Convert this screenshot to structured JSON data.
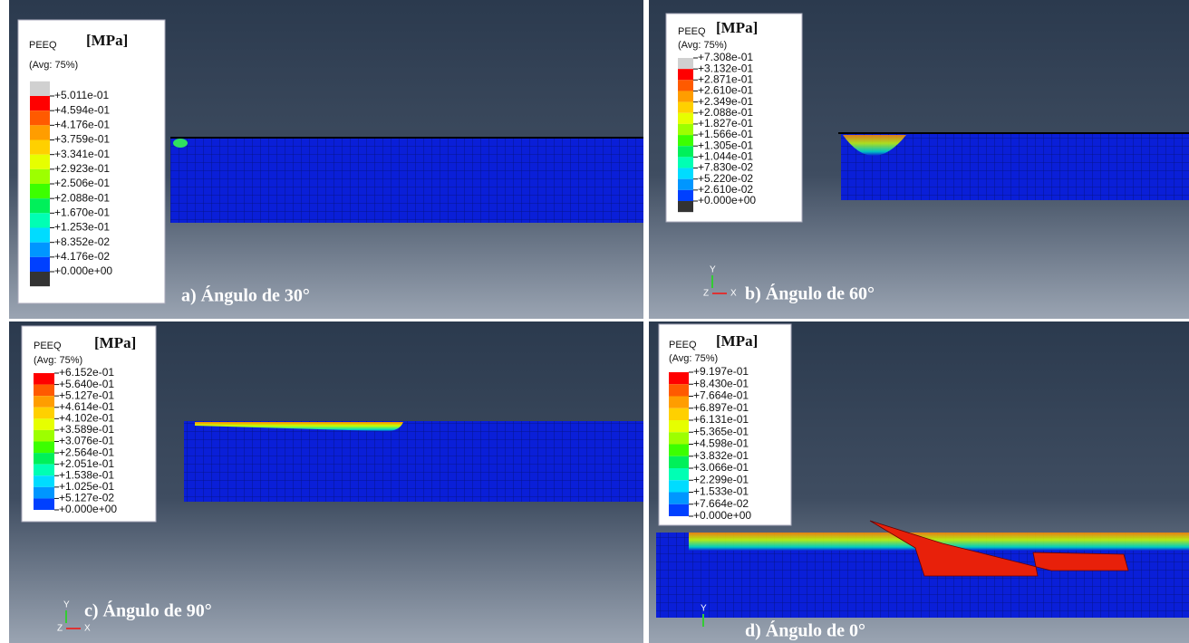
{
  "panels": [
    {
      "legend": {
        "variable": "PEEQ",
        "unit": "[MPa]",
        "average": "(Avg: 75%)",
        "labels": [
          "+5.011e-01",
          "+4.594e-01",
          "+4.176e-01",
          "+3.759e-01",
          "+3.341e-01",
          "+2.923e-01",
          "+2.506e-01",
          "+2.088e-01",
          "+1.670e-01",
          "+1.253e-01",
          "+8.352e-02",
          "+4.176e-02",
          "+0.000e+00"
        ]
      },
      "caption": "a) Ángulo de 30°"
    },
    {
      "legend": {
        "variable": "PEEQ",
        "unit": "[MPa]",
        "average": "(Avg: 75%)",
        "labels": [
          "+7.308e-01",
          "+3.132e-01",
          "+2.871e-01",
          "+2.610e-01",
          "+2.349e-01",
          "+2.088e-01",
          "+1.827e-01",
          "+1.566e-01",
          "+1.305e-01",
          "+1.044e-01",
          "+7.830e-02",
          "+5.220e-02",
          "+2.610e-02",
          "+0.000e+00"
        ]
      },
      "caption": "b) Ángulo de 60°",
      "triad": {
        "y": "Y",
        "z": "Z",
        "x": "X"
      }
    },
    {
      "legend": {
        "variable": "PEEQ",
        "unit": "[MPa]",
        "average": "(Avg: 75%)",
        "labels": [
          "+6.152e-01",
          "+5.640e-01",
          "+5.127e-01",
          "+4.614e-01",
          "+4.102e-01",
          "+3.589e-01",
          "+3.076e-01",
          "+2.564e-01",
          "+2.051e-01",
          "+1.538e-01",
          "+1.025e-01",
          "+5.127e-02",
          "+0.000e+00"
        ]
      },
      "caption": "c) Ángulo de 90°",
      "triad": {
        "y": "Y",
        "z": "Z",
        "x": "X"
      }
    },
    {
      "legend": {
        "variable": "PEEQ",
        "unit": "[MPa]",
        "average": "(Avg: 75%)",
        "labels": [
          "+9.197e-01",
          "+8.430e-01",
          "+7.664e-01",
          "+6.897e-01",
          "+6.131e-01",
          "+5.365e-01",
          "+4.598e-01",
          "+3.832e-01",
          "+3.066e-01",
          "+2.299e-01",
          "+1.533e-01",
          "+7.664e-02",
          "+0.000e+00"
        ]
      },
      "caption": "d) Ángulo de 0°",
      "triad": {
        "y": "Y"
      }
    }
  ]
}
